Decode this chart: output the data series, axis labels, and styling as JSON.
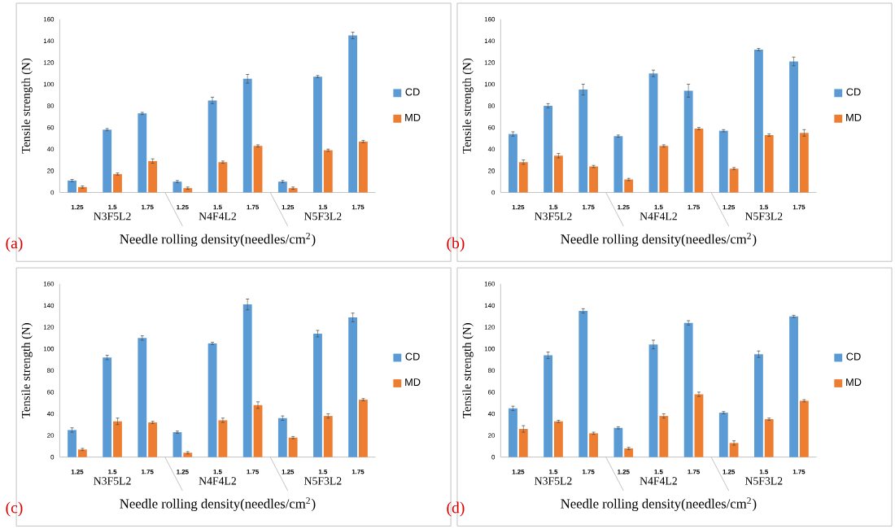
{
  "chart_data": [
    {
      "type": "bar",
      "ylabel": "Tensile strength (N)",
      "xlabel": "Needle rolling density(needles/cm$^{2}$)",
      "categories": [
        "1.25",
        "1.5",
        "1.75",
        "1.25",
        "1.5",
        "1.75",
        "1.25",
        "1.5",
        "1.75"
      ],
      "ylim": [
        0,
        160
      ],
      "yticks": [
        0,
        20,
        40,
        60,
        80,
        100,
        120,
        140,
        160
      ],
      "legend": "right",
      "annotations": [
        "N3F5L2",
        "N4F4L2",
        "N5F3L2",
        "(a)"
      ],
      "series": [
        {
          "name": "CD",
          "color": "#5b9bd5",
          "values": [
            11,
            58,
            73,
            10,
            85,
            105,
            10,
            107,
            145
          ],
          "errors": [
            1,
            1,
            1,
            1,
            3,
            4,
            1,
            1,
            3
          ]
        },
        {
          "name": "MD",
          "color": "#ed7d31",
          "values": [
            5,
            17,
            29,
            4,
            28,
            43,
            4,
            39,
            47
          ],
          "errors": [
            1,
            1,
            2,
            1,
            1,
            1,
            1,
            1,
            1
          ]
        }
      ]
    },
    {
      "type": "bar",
      "ylabel": "Tensile strength (N)",
      "xlabel": "Needle rolling density(needles/cm$^{2}$)",
      "categories": [
        "1.25",
        "1.5",
        "1.75",
        "1.25",
        "1.5",
        "1.75",
        "1.25",
        "1.5",
        "1.75"
      ],
      "ylim": [
        0,
        160
      ],
      "yticks": [
        0,
        20,
        40,
        60,
        80,
        100,
        120,
        140,
        160
      ],
      "legend": "right",
      "annotations": [
        "N3F5L2",
        "N4F4L2",
        "N5F3L2",
        "(b)"
      ],
      "series": [
        {
          "name": "CD",
          "color": "#5b9bd5",
          "values": [
            54,
            80,
            95,
            52,
            110,
            94,
            57,
            132,
            121
          ],
          "errors": [
            2,
            2,
            5,
            1,
            3,
            6,
            1,
            1,
            4
          ]
        },
        {
          "name": "MD",
          "color": "#ed7d31",
          "values": [
            28,
            34,
            24,
            12,
            43,
            59,
            22,
            53,
            55
          ],
          "errors": [
            2,
            2,
            1,
            1,
            1,
            1,
            1,
            1,
            3
          ]
        }
      ]
    },
    {
      "type": "bar",
      "ylabel": "Tensile strength (N)",
      "xlabel": "Needle rolling density(needles/cm$^{2}$)",
      "categories": [
        "1.25",
        "1.5",
        "1.75",
        "1.25",
        "1.5",
        "1.75",
        "1.25",
        "1.5",
        "1.75"
      ],
      "ylim": [
        0,
        160
      ],
      "yticks": [
        0,
        20,
        40,
        60,
        80,
        100,
        120,
        140,
        160
      ],
      "legend": "right",
      "annotations": [
        "N3F5L2",
        "N4F4L2",
        "N5F3L2",
        "(c)"
      ],
      "series": [
        {
          "name": "CD",
          "color": "#5b9bd5",
          "values": [
            25,
            92,
            110,
            23,
            105,
            141,
            36,
            114,
            129
          ],
          "errors": [
            2,
            2,
            2,
            1,
            1,
            5,
            2,
            3,
            4
          ]
        },
        {
          "name": "MD",
          "color": "#ed7d31",
          "values": [
            7,
            33,
            32,
            4,
            34,
            48,
            18,
            38,
            53
          ],
          "errors": [
            1,
            3,
            1,
            1,
            2,
            3,
            1,
            2,
            1
          ]
        }
      ]
    },
    {
      "type": "bar",
      "ylabel": "Tensile strength (N)",
      "xlabel": "Needle rolling density(needles/cm$^{2}$)",
      "categories": [
        "1.25",
        "1.5",
        "1.75",
        "1.25",
        "1.5",
        "1.75",
        "1.25",
        "1.5",
        "1.75"
      ],
      "ylim": [
        0,
        160
      ],
      "yticks": [
        0,
        20,
        40,
        60,
        80,
        100,
        120,
        140,
        160
      ],
      "legend": "right",
      "annotations": [
        "N3F5L2",
        "N4F4L2",
        "N5F3L2",
        "(d)"
      ],
      "series": [
        {
          "name": "CD",
          "color": "#5b9bd5",
          "values": [
            45,
            94,
            135,
            27,
            104,
            124,
            41,
            95,
            130
          ],
          "errors": [
            2,
            3,
            2,
            1,
            4,
            2,
            1,
            3,
            1
          ]
        },
        {
          "name": "MD",
          "color": "#ed7d31",
          "values": [
            26,
            33,
            22,
            8,
            38,
            58,
            13,
            35,
            52
          ],
          "errors": [
            3,
            1,
            1,
            1,
            2,
            2,
            2,
            1,
            1
          ]
        }
      ]
    }
  ]
}
